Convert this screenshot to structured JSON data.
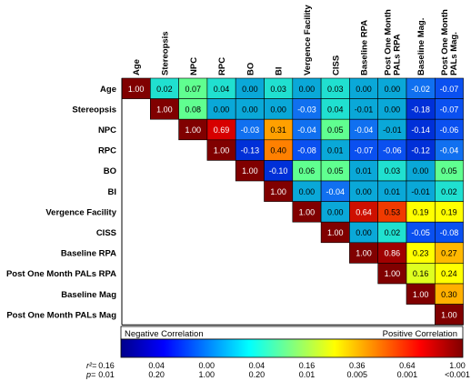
{
  "chart_data": {
    "type": "heatmap",
    "variables": [
      "Age",
      "Stereopsis",
      "NPC",
      "RPC",
      "BO",
      "BI",
      "Vergence Facility",
      "CISS",
      "Baseline RPA",
      "Post One Month PALs RPA",
      "Baseline Mag",
      "Post One Month PALs Mag"
    ],
    "column_labels": [
      "Age",
      "Stereopsis",
      "NPC",
      "RPC",
      "BO",
      "BI",
      "Vergence Facility",
      "CISS",
      "Baseline  RPA",
      "Post One Month PALs RPA",
      "Baseline Mag.",
      "Post One Month PALs Mag."
    ],
    "matrix": [
      [
        "1.00",
        "0.02",
        "0.07",
        "0.04",
        "0.00",
        "0.03",
        "0.00",
        "0.03",
        "0.00",
        "0.00",
        "-0.02",
        "-0.07"
      ],
      [
        null,
        "1.00",
        "0.08",
        "0.00",
        "0.00",
        "0.00",
        "-0.03",
        "0.04",
        "-0.01",
        "0.00",
        "-0.18",
        "-0.07"
      ],
      [
        null,
        null,
        "1.00",
        "0.69",
        "-0.03",
        "0.31",
        "-0.04",
        "0.05",
        "-0.04",
        "-0.01",
        "-0.14",
        "-0.06"
      ],
      [
        null,
        null,
        null,
        "1.00",
        "-0.13",
        "0.40",
        "-0.08",
        "0.01",
        "-0.07",
        "-0.06",
        "-0.12",
        "-0.04"
      ],
      [
        null,
        null,
        null,
        null,
        "1.00",
        "-0.10",
        "0.06",
        "0.05",
        "0.01",
        "0.03",
        "0.00",
        "0.05"
      ],
      [
        null,
        null,
        null,
        null,
        null,
        "1.00",
        "0.00",
        "-0.04",
        "0.00",
        "0.01",
        "-0.01",
        "0.02"
      ],
      [
        null,
        null,
        null,
        null,
        null,
        null,
        "1.00",
        "0.00",
        "0.64",
        "0.53",
        "0.19",
        "0.19"
      ],
      [
        null,
        null,
        null,
        null,
        null,
        null,
        null,
        "1.00",
        "0.00",
        "0.02",
        "-0.05",
        "-0.08"
      ],
      [
        null,
        null,
        null,
        null,
        null,
        null,
        null,
        null,
        "1.00",
        "0.86",
        "0.23",
        "0.27"
      ],
      [
        null,
        null,
        null,
        null,
        null,
        null,
        null,
        null,
        null,
        "1.00",
        "0.16",
        "0.24"
      ],
      [
        null,
        null,
        null,
        null,
        null,
        null,
        null,
        null,
        null,
        null,
        "1.00",
        "0.30"
      ],
      [
        null,
        null,
        null,
        null,
        null,
        null,
        null,
        null,
        null,
        null,
        null,
        "1.00"
      ]
    ],
    "colorbar": {
      "negative_label": "Negative Correlation",
      "positive_label": "Positive Correlation",
      "r2_prefix": "r²=",
      "p_prefix": "p=",
      "r2_ticks": [
        "0.16",
        "0.04",
        "0.00",
        "0.04",
        "0.16",
        "0.36",
        "0.64",
        "1.00"
      ],
      "p_ticks": [
        "0.01",
        "0.20",
        "1.00",
        "0.20",
        "0.01",
        "0.005",
        "0.001",
        "<0.001"
      ],
      "colors": [
        "#00008b",
        "#0000ff",
        "#0080ff",
        "#00ffff",
        "#80ff80",
        "#ffff00",
        "#ff8000",
        "#ff0000",
        "#800000"
      ]
    },
    "cell_colors": {
      "c100": "#800000",
      "c086": "#a00000",
      "c069": "#d70000",
      "c064": "#ce1000",
      "c053": "#f03a00",
      "c040": "#ff8000",
      "c031": "#ffa000",
      "c030": "#ffb000",
      "c027": "#ffb800",
      "c024": "#ffff00",
      "c023": "#ffff00",
      "c019": "#ffff00",
      "c016": "#dfff20",
      "pos_small": "#20e0d0",
      "pos_mid": "#60ff90",
      "zero": "#0aa8d8",
      "neg_small": "#1070f0",
      "neg_mid": "#0a50f0",
      "neg_large": "#0030d8",
      "grid": "#000000",
      "text_light": "#ffffff",
      "text_dark": "#000000"
    }
  }
}
